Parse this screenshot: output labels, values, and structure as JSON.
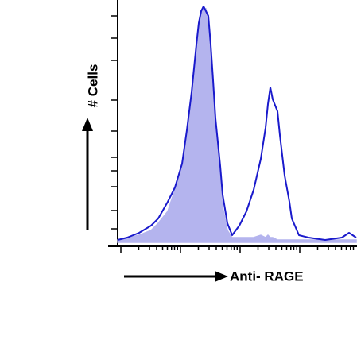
{
  "chart_data": {
    "type": "area",
    "y_label": "# Cells",
    "x_label": "Anti- RAGE",
    "x": [
      0,
      4,
      9,
      14,
      17,
      21,
      24,
      27,
      29,
      31,
      33,
      34,
      35,
      36,
      37,
      38,
      39,
      40,
      41,
      43,
      44,
      46,
      48,
      51,
      54,
      57,
      60,
      62,
      63,
      64,
      65,
      67,
      68,
      70,
      72,
      73,
      76,
      80,
      87,
      94,
      97,
      100
    ],
    "xlim": [
      0,
      100
    ],
    "ylim": [
      0,
      100
    ],
    "series": [
      {
        "color": "#b4b4ee",
        "filled": true,
        "values": [
          1,
          2,
          3,
          5,
          8,
          13,
          22,
          32,
          45,
          62,
          82,
          92,
          97,
          98,
          98,
          93,
          82,
          65,
          48,
          28,
          15,
          5,
          2,
          2,
          2,
          2,
          3,
          2,
          3,
          2,
          2,
          1,
          1,
          1,
          1,
          1,
          1,
          1,
          1,
          1,
          1,
          1
        ]
      },
      {
        "color": "#1a1acc",
        "filled": false,
        "values": [
          1,
          2,
          4,
          7,
          10,
          17,
          23,
          33,
          47,
          63,
          83,
          92,
          97,
          99,
          97,
          95,
          83,
          68,
          52,
          32,
          20,
          8,
          3,
          7,
          13,
          22,
          35,
          48,
          58,
          65,
          60,
          55,
          45,
          28,
          17,
          10,
          3,
          2,
          1,
          2,
          4,
          2
        ]
      }
    ]
  }
}
